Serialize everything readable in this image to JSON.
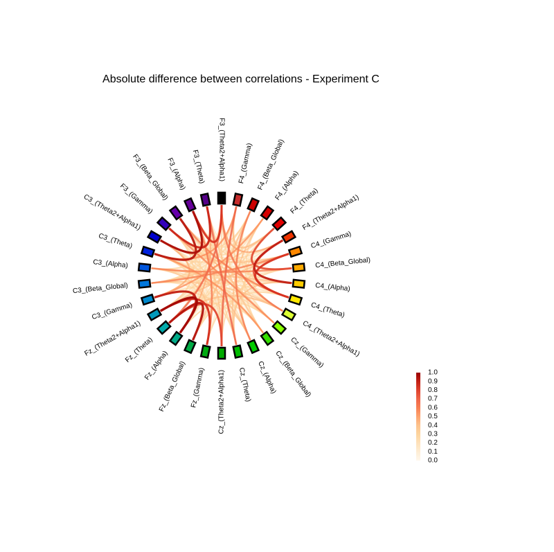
{
  "chart_data": {
    "type": "chord",
    "title": "Absolute difference between correlations - Experiment C",
    "nodes": [
      {
        "label": "F3_(Theta2+Alpha1)",
        "color": "#000000"
      },
      {
        "label": "F4_(Gamma)",
        "color": "#c62d2d"
      },
      {
        "label": "F4_(Beta_Global)",
        "color": "#cc0000"
      },
      {
        "label": "F4_(Alpha)",
        "color": "#d40000"
      },
      {
        "label": "F4_(Theta)",
        "color": "#e00000"
      },
      {
        "label": "F4_(Theta2+Alpha1)",
        "color": "#ee3300"
      },
      {
        "label": "C4_(Gamma)",
        "color": "#ff8800"
      },
      {
        "label": "C4_(Beta_Global)",
        "color": "#ffaa00"
      },
      {
        "label": "C4_(Alpha)",
        "color": "#ffcc00"
      },
      {
        "label": "C4_(Theta)",
        "color": "#ffe800"
      },
      {
        "label": "C4_(Theta2+Alpha1)",
        "color": "#ddff33"
      },
      {
        "label": "Cz_(Gamma)",
        "color": "#88ff00"
      },
      {
        "label": "Cz_(Beta_Global)",
        "color": "#33dd00"
      },
      {
        "label": "Cz_(Alpha)",
        "color": "#00cc00"
      },
      {
        "label": "Cz_(Theta)",
        "color": "#00bb00"
      },
      {
        "label": "Cz_(Theta2+Alpha1)",
        "color": "#00aa00"
      },
      {
        "label": "Fz_(Gamma)",
        "color": "#00aa11"
      },
      {
        "label": "Fz_(Beta_Global)",
        "color": "#00aa44"
      },
      {
        "label": "Fz_(Alpha)",
        "color": "#00aa88"
      },
      {
        "label": "Fz_(Theta)",
        "color": "#00aaaa"
      },
      {
        "label": "Fz_(Theta2+Alpha1)",
        "color": "#0099bb"
      },
      {
        "label": "C3_(Gamma)",
        "color": "#0088cc"
      },
      {
        "label": "C3_(Beta_Global)",
        "color": "#0077dd"
      },
      {
        "label": "C3_(Alpha)",
        "color": "#0055dd"
      },
      {
        "label": "C3_(Theta)",
        "color": "#0022dd"
      },
      {
        "label": "C3_(Theta2+Alpha1)",
        "color": "#0000cc"
      },
      {
        "label": "F3_(Gamma)",
        "color": "#3300bb"
      },
      {
        "label": "F3_(Beta_Global)",
        "color": "#6600aa"
      },
      {
        "label": "F3_(Alpha)",
        "color": "#660099"
      },
      {
        "label": "F3_(Theta)",
        "color": "#550088"
      }
    ],
    "edges": [
      [
        25,
        28,
        0.95
      ],
      [
        24,
        27,
        0.92
      ],
      [
        26,
        29,
        0.88
      ],
      [
        28,
        0,
        0.85
      ],
      [
        20,
        18,
        0.97
      ],
      [
        19,
        17,
        0.93
      ],
      [
        21,
        18,
        0.9
      ],
      [
        20,
        16,
        0.86
      ],
      [
        19,
        15,
        0.8
      ],
      [
        5,
        8,
        0.9
      ],
      [
        6,
        9,
        0.85
      ],
      [
        4,
        7,
        0.78
      ],
      [
        5,
        9,
        0.75
      ],
      [
        29,
        14,
        0.7
      ],
      [
        0,
        10,
        0.65
      ],
      [
        1,
        15,
        0.7
      ],
      [
        2,
        13,
        0.62
      ],
      [
        27,
        9,
        0.6
      ],
      [
        24,
        12,
        0.55
      ],
      [
        22,
        6,
        0.6
      ],
      [
        26,
        11,
        0.58
      ],
      [
        0,
        19,
        0.68
      ],
      [
        3,
        21,
        0.55
      ],
      [
        7,
        23,
        0.6
      ],
      [
        28,
        16,
        0.62
      ],
      [
        1,
        24,
        0.55
      ],
      [
        23,
        8,
        0.45
      ],
      [
        22,
        10,
        0.4
      ],
      [
        25,
        6,
        0.42
      ],
      [
        29,
        18,
        0.48
      ],
      [
        2,
        17,
        0.45
      ],
      [
        3,
        14,
        0.42
      ],
      [
        4,
        22,
        0.4
      ],
      [
        6,
        20,
        0.45
      ],
      [
        9,
        26,
        0.38
      ],
      [
        11,
        27,
        0.42
      ],
      [
        12,
        29,
        0.4
      ],
      [
        13,
        24,
        0.44
      ],
      [
        0,
        5,
        0.5
      ],
      [
        1,
        4,
        0.45
      ],
      [
        21,
        25,
        0.48
      ],
      [
        16,
        23,
        0.4
      ],
      [
        8,
        14,
        0.42
      ],
      [
        10,
        19,
        0.45
      ],
      [
        15,
        28,
        0.4
      ],
      [
        0,
        12,
        0.3
      ],
      [
        0,
        22,
        0.28
      ],
      [
        1,
        11,
        0.32
      ],
      [
        1,
        20,
        0.3
      ],
      [
        2,
        9,
        0.28
      ],
      [
        2,
        22,
        0.3
      ],
      [
        2,
        26,
        0.32
      ],
      [
        3,
        10,
        0.3
      ],
      [
        3,
        18,
        0.28
      ],
      [
        3,
        27,
        0.26
      ],
      [
        4,
        12,
        0.3
      ],
      [
        4,
        17,
        0.32
      ],
      [
        4,
        25,
        0.28
      ],
      [
        5,
        13,
        0.3
      ],
      [
        5,
        20,
        0.28
      ],
      [
        5,
        24,
        0.32
      ],
      [
        6,
        14,
        0.3
      ],
      [
        6,
        26,
        0.26
      ],
      [
        7,
        15,
        0.32
      ],
      [
        7,
        19,
        0.28
      ],
      [
        7,
        28,
        0.3
      ],
      [
        8,
        17,
        0.28
      ],
      [
        8,
        21,
        0.3
      ],
      [
        8,
        26,
        0.32
      ],
      [
        9,
        16,
        0.3
      ],
      [
        9,
        22,
        0.28
      ],
      [
        10,
        24,
        0.3
      ],
      [
        10,
        28,
        0.26
      ],
      [
        11,
        18,
        0.3
      ],
      [
        11,
        23,
        0.32
      ],
      [
        12,
        20,
        0.28
      ],
      [
        12,
        25,
        0.3
      ],
      [
        13,
        19,
        0.3
      ],
      [
        13,
        27,
        0.28
      ],
      [
        14,
        21,
        0.32
      ],
      [
        14,
        25,
        0.3
      ],
      [
        15,
        22,
        0.28
      ],
      [
        15,
        26,
        0.3
      ],
      [
        16,
        24,
        0.3
      ],
      [
        16,
        29,
        0.28
      ],
      [
        17,
        25,
        0.3
      ],
      [
        18,
        27,
        0.28
      ],
      [
        19,
        29,
        0.3
      ],
      [
        20,
        26,
        0.32
      ],
      [
        21,
        27,
        0.3
      ],
      [
        23,
        28,
        0.3
      ],
      [
        24,
        29,
        0.28
      ],
      [
        0,
        15,
        0.32
      ],
      [
        1,
        9,
        0.3
      ],
      [
        2,
        18,
        0.28
      ],
      [
        0,
        3,
        0.15
      ],
      [
        0,
        8,
        0.18
      ],
      [
        0,
        17,
        0.12
      ],
      [
        0,
        26,
        0.16
      ],
      [
        1,
        6,
        0.14
      ],
      [
        1,
        14,
        0.18
      ],
      [
        1,
        22,
        0.12
      ],
      [
        1,
        27,
        0.15
      ],
      [
        2,
        7,
        0.16
      ],
      [
        2,
        12,
        0.14
      ],
      [
        2,
        24,
        0.18
      ],
      [
        3,
        8,
        0.12
      ],
      [
        3,
        16,
        0.15
      ],
      [
        3,
        23,
        0.18
      ],
      [
        3,
        29,
        0.14
      ],
      [
        4,
        10,
        0.16
      ],
      [
        4,
        15,
        0.12
      ],
      [
        4,
        20,
        0.15
      ],
      [
        4,
        28,
        0.18
      ],
      [
        5,
        11,
        0.14
      ],
      [
        5,
        16,
        0.18
      ],
      [
        5,
        22,
        0.12
      ],
      [
        5,
        27,
        0.15
      ],
      [
        6,
        12,
        0.16
      ],
      [
        6,
        17,
        0.14
      ],
      [
        6,
        23,
        0.12
      ],
      [
        6,
        28,
        0.18
      ],
      [
        7,
        13,
        0.15
      ],
      [
        7,
        21,
        0.12
      ],
      [
        7,
        25,
        0.16
      ],
      [
        8,
        12,
        0.14
      ],
      [
        8,
        19,
        0.18
      ],
      [
        8,
        24,
        0.15
      ],
      [
        8,
        29,
        0.12
      ],
      [
        9,
        14,
        0.16
      ],
      [
        9,
        18,
        0.15
      ],
      [
        9,
        24,
        0.12
      ],
      [
        9,
        28,
        0.14
      ],
      [
        10,
        13,
        0.18
      ],
      [
        10,
        17,
        0.15
      ],
      [
        10,
        22,
        0.12
      ],
      [
        10,
        26,
        0.16
      ],
      [
        11,
        15,
        0.14
      ],
      [
        11,
        20,
        0.18
      ],
      [
        11,
        25,
        0.12
      ],
      [
        11,
        29,
        0.15
      ],
      [
        12,
        16,
        0.16
      ],
      [
        12,
        21,
        0.14
      ],
      [
        12,
        27,
        0.12
      ],
      [
        13,
        17,
        0.15
      ],
      [
        13,
        21,
        0.18
      ],
      [
        13,
        26,
        0.14
      ],
      [
        14,
        18,
        0.12
      ],
      [
        14,
        23,
        0.16
      ],
      [
        14,
        28,
        0.15
      ],
      [
        15,
        19,
        0.14
      ],
      [
        15,
        24,
        0.18
      ],
      [
        15,
        29,
        0.12
      ],
      [
        16,
        21,
        0.15
      ],
      [
        16,
        26,
        0.16
      ],
      [
        17,
        22,
        0.14
      ],
      [
        17,
        27,
        0.12
      ],
      [
        18,
        23,
        0.16
      ],
      [
        18,
        25,
        0.14
      ],
      [
        19,
        24,
        0.18
      ],
      [
        19,
        27,
        0.15
      ],
      [
        20,
        25,
        0.14
      ],
      [
        20,
        29,
        0.12
      ],
      [
        21,
        26,
        0.16
      ],
      [
        22,
        26,
        0.15
      ],
      [
        22,
        29,
        0.18
      ],
      [
        23,
        27,
        0.14
      ],
      [
        25,
        29,
        0.15
      ],
      [
        0,
        24,
        0.14
      ],
      [
        0,
        13,
        0.12
      ],
      [
        1,
        18,
        0.16
      ],
      [
        2,
        15,
        0.14
      ],
      [
        3,
        20,
        0.15
      ],
      [
        4,
        14,
        0.16
      ],
      [
        5,
        18,
        0.12
      ],
      [
        6,
        21,
        0.15
      ],
      [
        7,
        22,
        0.14
      ],
      [
        7,
        17,
        0.16
      ],
      [
        9,
        20,
        0.12
      ],
      [
        10,
        27,
        0.14
      ],
      [
        11,
        21,
        0.15
      ],
      [
        12,
        23,
        0.16
      ],
      [
        13,
        22,
        0.12
      ],
      [
        14,
        26,
        0.14
      ],
      [
        15,
        27,
        0.16
      ],
      [
        16,
        27,
        0.12
      ],
      [
        17,
        28,
        0.15
      ],
      [
        18,
        28,
        0.14
      ],
      [
        19,
        25,
        0.16
      ],
      [
        20,
        23,
        0.12
      ],
      [
        21,
        29,
        0.15
      ],
      [
        23,
        29,
        0.14
      ],
      [
        24,
        28,
        0.16
      ],
      [
        0,
        9,
        0.14
      ],
      [
        1,
        25,
        0.12
      ],
      [
        2,
        28,
        0.15
      ],
      [
        3,
        25,
        0.14
      ],
      [
        4,
        26,
        0.12
      ],
      [
        5,
        26,
        0.16
      ],
      [
        6,
        25,
        0.14
      ],
      [
        8,
        27,
        0.12
      ],
      [
        10,
        25,
        0.15
      ],
      [
        11,
        24,
        0.16
      ],
      [
        12,
        22,
        0.14
      ],
      [
        13,
        28,
        0.12
      ]
    ],
    "colorbar": {
      "min": 0.0,
      "max": 1.0,
      "ticks": [
        "0.0",
        "0.1",
        "0.2",
        "0.3",
        "0.4",
        "0.5",
        "0.6",
        "0.7",
        "0.8",
        "0.9",
        "1.0"
      ],
      "colormap": "OrRd"
    }
  }
}
